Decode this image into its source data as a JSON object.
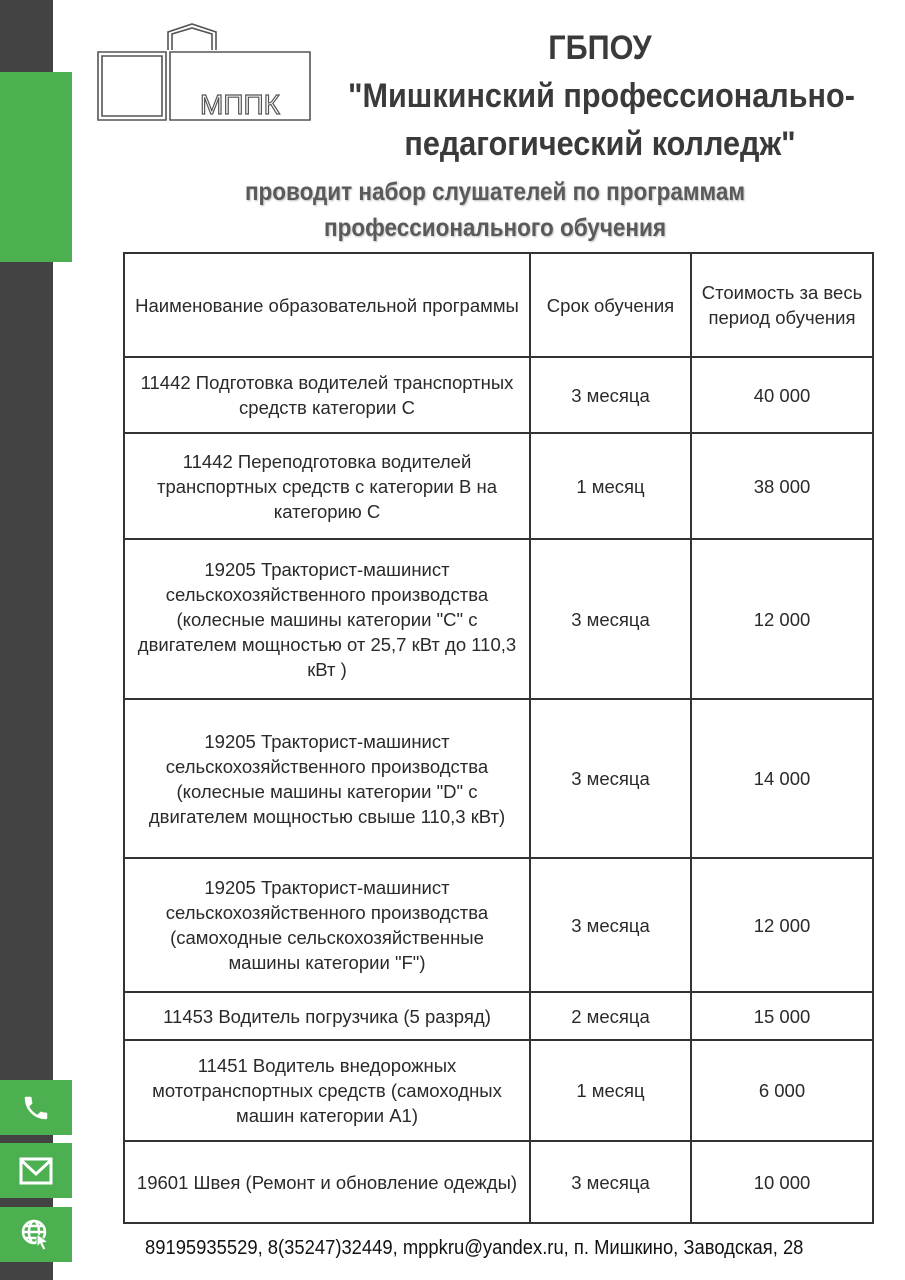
{
  "logo": {
    "text": "МППК"
  },
  "header": {
    "org_type": "ГБПОУ",
    "name_line1": "\"Мишкинский профессионально-",
    "name_line2": "педагогический колледж\"",
    "subtitle_line1": "проводит набор слушателей по программам",
    "subtitle_line2": "профессионального обучения"
  },
  "table": {
    "headers": [
      "Наименование образовательной программы",
      "Срок обучения",
      "Стоимость за весь период обучения"
    ],
    "rows": [
      [
        "11442 Подготовка водителей транспортных средств категории С",
        "3 месяца",
        "40 000"
      ],
      [
        "11442 Переподготовка водителей транспортных средств с категории В на категорию С",
        "1 месяц",
        "38 000"
      ],
      [
        "19205 Тракторист-машинист сельскохозяйственного производства (колесные машины категории \"C\" с двигателем мощностью от 25,7 кВт до 110,3 кВт )",
        "3 месяца",
        "12 000"
      ],
      [
        "19205 Тракторист-машинист сельскохозяйственного производства (колесные машины категории \"D\" с двигателем мощностью свыше 110,3 кВт)",
        "3 месяца",
        "14 000"
      ],
      [
        "19205 Тракторист-машинист сельскохозяйственного производства (самоходные сельскохозяйственные машины категории \"F\")",
        "3 месяца",
        "12 000"
      ],
      [
        "11453 Водитель погрузчика (5 разряд)",
        "2 месяца",
        "15 000"
      ],
      [
        "11451 Водитель внедорожных мототранспортных средств (самоходных машин категории А1)",
        "1 месяц",
        "6 000"
      ],
      [
        "19601 Швея (Ремонт и обновление одежды)",
        "3 месяца",
        "10 000"
      ]
    ]
  },
  "footer": {
    "contacts": "89195935529, 8(35247)32449, mppkru@yandex.ru,  п. Мишкино, Заводская, 28"
  },
  "colors": {
    "accent": "#4caf50",
    "sidebar": "#434343",
    "text": "#3a3a3a"
  },
  "icons": [
    "phone-icon",
    "mail-icon",
    "web-icon"
  ]
}
